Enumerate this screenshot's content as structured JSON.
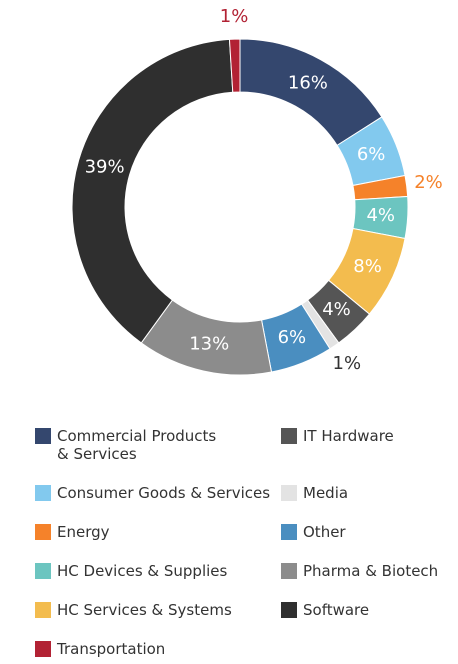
{
  "chart_data": {
    "type": "donut",
    "categories": [
      "Commercial Products & Services",
      "Consumer Goods & Services",
      "Energy",
      "HC Devices & Supplies",
      "HC Services & Systems",
      "Transportation",
      "IT Hardware",
      "Media",
      "Other",
      "Pharma & Biotech",
      "Software"
    ],
    "values": [
      16,
      6,
      2,
      4,
      8,
      1,
      4,
      1,
      6,
      13,
      39
    ],
    "value_labels": [
      "16%",
      "6%",
      "2%",
      "4%",
      "8%",
      "1%",
      "4%",
      "1%",
      "6%",
      "13%",
      "39%"
    ],
    "colors": [
      "#34476e",
      "#82c9ee",
      "#f5822a",
      "#6cc5c0",
      "#f3bc4e",
      "#b22234",
      "#555555",
      "#e3e3e3",
      "#4a8ec0",
      "#8c8c8c",
      "#2f2f2f"
    ],
    "draw_order": [
      0,
      1,
      2,
      3,
      4,
      6,
      7,
      8,
      9,
      10,
      5
    ],
    "legend": true
  }
}
